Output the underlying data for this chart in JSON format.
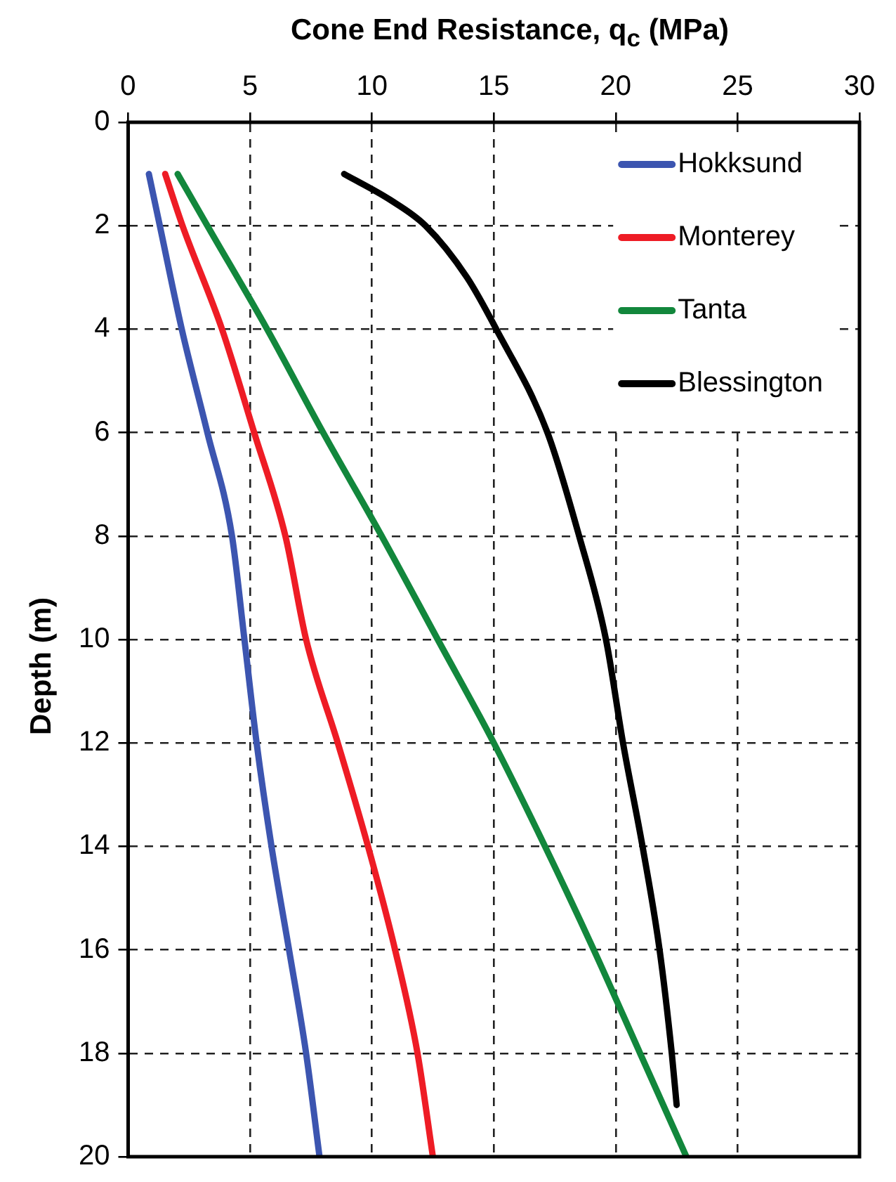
{
  "chart_data": {
    "type": "line",
    "xlabel": "Cone End Resistance, q$_{c}$ (MPa)",
    "ylabel": "Depth (m)",
    "xlim": [
      0,
      30
    ],
    "xticks": [
      0,
      5,
      10,
      15,
      20,
      25,
      30
    ],
    "ylim": [
      20,
      0
    ],
    "yticks": [
      0,
      2,
      4,
      6,
      8,
      10,
      12,
      14,
      16,
      18,
      20
    ],
    "grid": true,
    "legend": "top right",
    "marker": "none",
    "line_style": "solid",
    "series": [
      {
        "name": "Hokksund",
        "color": "#3c55b0",
        "x": [
          0.85,
          1.3,
          2.2,
          3.25,
          4.26,
          4.77,
          5.27,
          5.88,
          6.6,
          7.3,
          7.85
        ],
        "values": [
          1,
          2,
          4,
          6,
          8,
          10,
          12,
          14,
          16,
          18,
          20
        ]
      },
      {
        "name": "Monterey",
        "color": "#ee1c25",
        "x": [
          1.52,
          2.23,
          3.85,
          5.17,
          6.45,
          7.3,
          8.6,
          9.84,
          10.95,
          11.87,
          12.5
        ],
        "values": [
          1,
          2,
          4,
          6,
          8,
          10,
          12,
          14,
          16,
          18,
          20
        ]
      },
      {
        "name": "Tanta",
        "color": "#12873c",
        "x": [
          2.03,
          3.25,
          5.7,
          8.0,
          10.4,
          12.7,
          15.0,
          17.1,
          19.1,
          21.0,
          22.9
        ],
        "values": [
          1,
          2,
          4,
          6,
          8,
          10,
          12,
          14,
          16,
          18,
          20
        ]
      },
      {
        "name": "Blessington",
        "color": "#000000",
        "x": [
          8.86,
          10.75,
          12.2,
          13.9,
          15.1,
          17.2,
          18.5,
          19.6,
          20.3,
          21.1,
          21.8,
          22.3,
          22.5
        ],
        "values": [
          1,
          1.5,
          2,
          3,
          4,
          6,
          8,
          10,
          12,
          14,
          16,
          18,
          19
        ]
      }
    ]
  }
}
